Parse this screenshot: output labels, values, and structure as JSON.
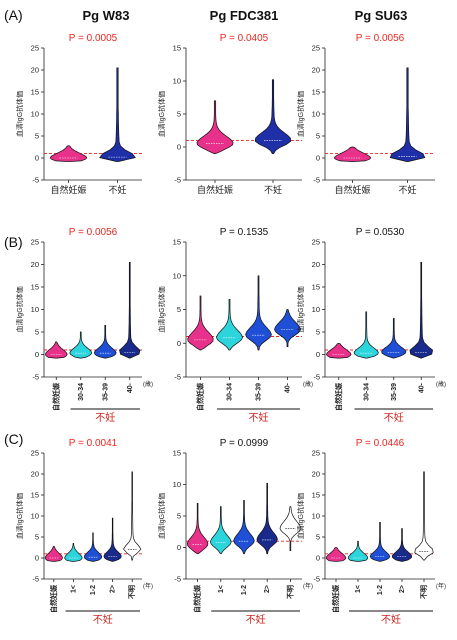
{
  "row_labels": [
    "(A)",
    "(B)",
    "(C)"
  ],
  "column_titles": [
    "Pg W83",
    "Pg FDC381",
    "Pg SU63"
  ],
  "colors": {
    "significant": "#e8271f",
    "nonsignificant": "#111111",
    "reference_line": "#e8271f",
    "natural": "#e8318a",
    "infertile": "#1f2fa8",
    "cyan": "#2cd4dc",
    "blue_mid": "#1e4fd6",
    "navy": "#1a2a8c",
    "white": "#ffffff"
  },
  "chart_data": [
    {
      "type": "violin",
      "row": "(A)",
      "col": "Pg W83",
      "pvalue": "P = 0.0005",
      "significant": true,
      "categories": [
        "自然妊娠",
        "不妊"
      ],
      "ylabel": "血清IgG抗体価",
      "ylim": [
        -5,
        25
      ],
      "yticks": [
        -5,
        0,
        5,
        10,
        15,
        20,
        25
      ],
      "reference_line": 1,
      "fills": [
        "natural",
        "infertile"
      ],
      "series": [
        {
          "name": "自然妊娠",
          "min": -0.8,
          "max": 2.8,
          "center": 0
        },
        {
          "name": "不妊",
          "min": -0.8,
          "max": 20.5,
          "center": 0.2
        }
      ]
    },
    {
      "type": "violin",
      "row": "(A)",
      "col": "Pg FDC381",
      "pvalue": "P = 0.0405",
      "significant": true,
      "categories": [
        "自然妊娠",
        "不妊"
      ],
      "ylabel": "血清IgG抗体価",
      "ylim": [
        -5,
        15
      ],
      "yticks": [
        -5,
        0,
        5,
        10,
        15
      ],
      "reference_line": 1,
      "fills": [
        "natural",
        "infertile"
      ],
      "series": [
        {
          "name": "自然妊娠",
          "min": -1,
          "max": 7,
          "center": 0.5
        },
        {
          "name": "不妊",
          "min": -1,
          "max": 10.2,
          "center": 1
        }
      ]
    },
    {
      "type": "violin",
      "row": "(A)",
      "col": "Pg SU63",
      "pvalue": "P = 0.0056",
      "significant": true,
      "categories": [
        "自然妊娠",
        "不妊"
      ],
      "ylabel": "血清IgG抗体価",
      "ylim": [
        -5,
        25
      ],
      "yticks": [
        -5,
        0,
        5,
        10,
        15,
        20,
        25
      ],
      "reference_line": 1,
      "fills": [
        "natural",
        "infertile"
      ],
      "series": [
        {
          "name": "自然妊娠",
          "min": -0.8,
          "max": 2.5,
          "center": 0
        },
        {
          "name": "不妊",
          "min": -0.8,
          "max": 20.5,
          "center": 0.3
        }
      ]
    },
    {
      "type": "violin",
      "row": "(B)",
      "col": "Pg W83",
      "pvalue": "P = 0.0056",
      "significant": true,
      "categories": [
        "自然妊娠",
        "30-34",
        "35-39",
        "40-"
      ],
      "unit": "(歳)",
      "group_label": "不妊",
      "group_start": 1,
      "ylabel": "血清IgG抗体価",
      "ylim": [
        -5,
        25
      ],
      "yticks": [
        -5,
        0,
        5,
        10,
        15,
        20,
        25
      ],
      "reference_line": 1,
      "fills": [
        "natural",
        "cyan",
        "blue_mid",
        "navy"
      ],
      "series": [
        {
          "name": "自然妊娠",
          "min": -0.8,
          "max": 2.8,
          "center": 0
        },
        {
          "name": "30-34",
          "min": -0.8,
          "max": 5,
          "center": 0.3
        },
        {
          "name": "35-39",
          "min": -0.8,
          "max": 6.5,
          "center": 0.3
        },
        {
          "name": "40-",
          "min": -0.8,
          "max": 20.5,
          "center": 0.5
        }
      ]
    },
    {
      "type": "violin",
      "row": "(B)",
      "col": "Pg FDC381",
      "pvalue": "P = 0.1535",
      "significant": false,
      "categories": [
        "自然妊娠",
        "30-34",
        "35-39",
        "40-"
      ],
      "unit": "(歳)",
      "group_label": "不妊",
      "group_start": 1,
      "ylabel": "血清IgG抗体価",
      "ylim": [
        -5,
        15
      ],
      "yticks": [
        -5,
        0,
        5,
        10,
        15
      ],
      "reference_line": 1,
      "fills": [
        "natural",
        "cyan",
        "blue_mid",
        "blue_mid"
      ],
      "series": [
        {
          "name": "自然妊娠",
          "min": -1,
          "max": 7,
          "center": 0.5
        },
        {
          "name": "30-34",
          "min": -1,
          "max": 6.5,
          "center": 0.8
        },
        {
          "name": "35-39",
          "min": -1,
          "max": 10,
          "center": 1.2
        },
        {
          "name": "40-",
          "min": -0.5,
          "max": 5,
          "center": 2
        }
      ]
    },
    {
      "type": "violin",
      "row": "(B)",
      "col": "Pg SU63",
      "pvalue": "P = 0.0530",
      "significant": false,
      "categories": [
        "自然妊娠",
        "30-34",
        "35-39",
        "40-"
      ],
      "unit": "(歳)",
      "group_label": "不妊",
      "group_start": 1,
      "ylabel": "血清IgG抗体価",
      "ylim": [
        -5,
        25
      ],
      "yticks": [
        -5,
        0,
        5,
        10,
        15,
        20,
        25
      ],
      "reference_line": 1,
      "fills": [
        "natural",
        "cyan",
        "blue_mid",
        "navy"
      ],
      "series": [
        {
          "name": "自然妊娠",
          "min": -0.8,
          "max": 2.5,
          "center": 0
        },
        {
          "name": "30-34",
          "min": -0.8,
          "max": 9.5,
          "center": 0.3
        },
        {
          "name": "35-39",
          "min": -0.8,
          "max": 8,
          "center": 0.5
        },
        {
          "name": "40-",
          "min": -0.8,
          "max": 20.5,
          "center": 0.5
        }
      ]
    },
    {
      "type": "violin",
      "row": "(C)",
      "col": "Pg W83",
      "pvalue": "P = 0.0041",
      "significant": true,
      "categories": [
        "自然妊娠",
        "1<",
        "1-2",
        "2>",
        "不明"
      ],
      "unit": "(年)",
      "group_label": "不妊",
      "group_start": 1,
      "ylabel": "血清IgG抗体価",
      "ylim": [
        -5,
        25
      ],
      "yticks": [
        -5,
        0,
        5,
        10,
        15,
        20,
        25
      ],
      "reference_line": 1,
      "fills": [
        "natural",
        "cyan",
        "blue_mid",
        "navy",
        "white"
      ],
      "series": [
        {
          "name": "自然妊娠",
          "min": -0.8,
          "max": 2.8,
          "center": 0
        },
        {
          "name": "1<",
          "min": -0.8,
          "max": 3.5,
          "center": 0
        },
        {
          "name": "1-2",
          "min": -0.8,
          "max": 6,
          "center": 0.2
        },
        {
          "name": "2>",
          "min": -0.8,
          "max": 9.5,
          "center": 0.3
        },
        {
          "name": "不明",
          "min": -0.5,
          "max": 20.5,
          "center": 2
        }
      ]
    },
    {
      "type": "violin",
      "row": "(C)",
      "col": "Pg FDC381",
      "pvalue": "P = 0.0999",
      "significant": false,
      "categories": [
        "自然妊娠",
        "1<",
        "1-2",
        "2>",
        "不明"
      ],
      "unit": "(年)",
      "group_label": "不妊",
      "group_start": 1,
      "ylabel": "血清IgG抗体価",
      "ylim": [
        -5,
        15
      ],
      "yticks": [
        -5,
        0,
        5,
        10,
        15
      ],
      "reference_line": 1,
      "fills": [
        "natural",
        "cyan",
        "blue_mid",
        "navy",
        "white"
      ],
      "series": [
        {
          "name": "自然妊娠",
          "min": -1,
          "max": 7,
          "center": 0.5
        },
        {
          "name": "1<",
          "min": -1,
          "max": 6.5,
          "center": 0.8
        },
        {
          "name": "1-2",
          "min": -1,
          "max": 7.5,
          "center": 1
        },
        {
          "name": "2>",
          "min": -1,
          "max": 10.2,
          "center": 1.2
        },
        {
          "name": "不明",
          "min": -0.5,
          "max": 6.5,
          "center": 3
        }
      ]
    },
    {
      "type": "violin",
      "row": "(C)",
      "col": "Pg SU63",
      "pvalue": "P = 0.0446",
      "significant": true,
      "categories": [
        "自然妊娠",
        "1<",
        "1-2",
        "2>",
        "不明"
      ],
      "unit": "(年)",
      "group_label": "不妊",
      "group_start": 1,
      "ylabel": "血清IgG抗体価",
      "ylim": [
        -5,
        25
      ],
      "yticks": [
        -5,
        0,
        5,
        10,
        15,
        20,
        25
      ],
      "reference_line": 1,
      "fills": [
        "natural",
        "cyan",
        "blue_mid",
        "navy",
        "white"
      ],
      "series": [
        {
          "name": "自然妊娠",
          "min": -0.8,
          "max": 2.5,
          "center": 0
        },
        {
          "name": "1<",
          "min": -0.8,
          "max": 4,
          "center": 0
        },
        {
          "name": "1-2",
          "min": -0.8,
          "max": 8.5,
          "center": 0.3
        },
        {
          "name": "2>",
          "min": -0.8,
          "max": 7,
          "center": 0.3
        },
        {
          "name": "不明",
          "min": -0.5,
          "max": 20.5,
          "center": 1.5
        }
      ]
    }
  ]
}
